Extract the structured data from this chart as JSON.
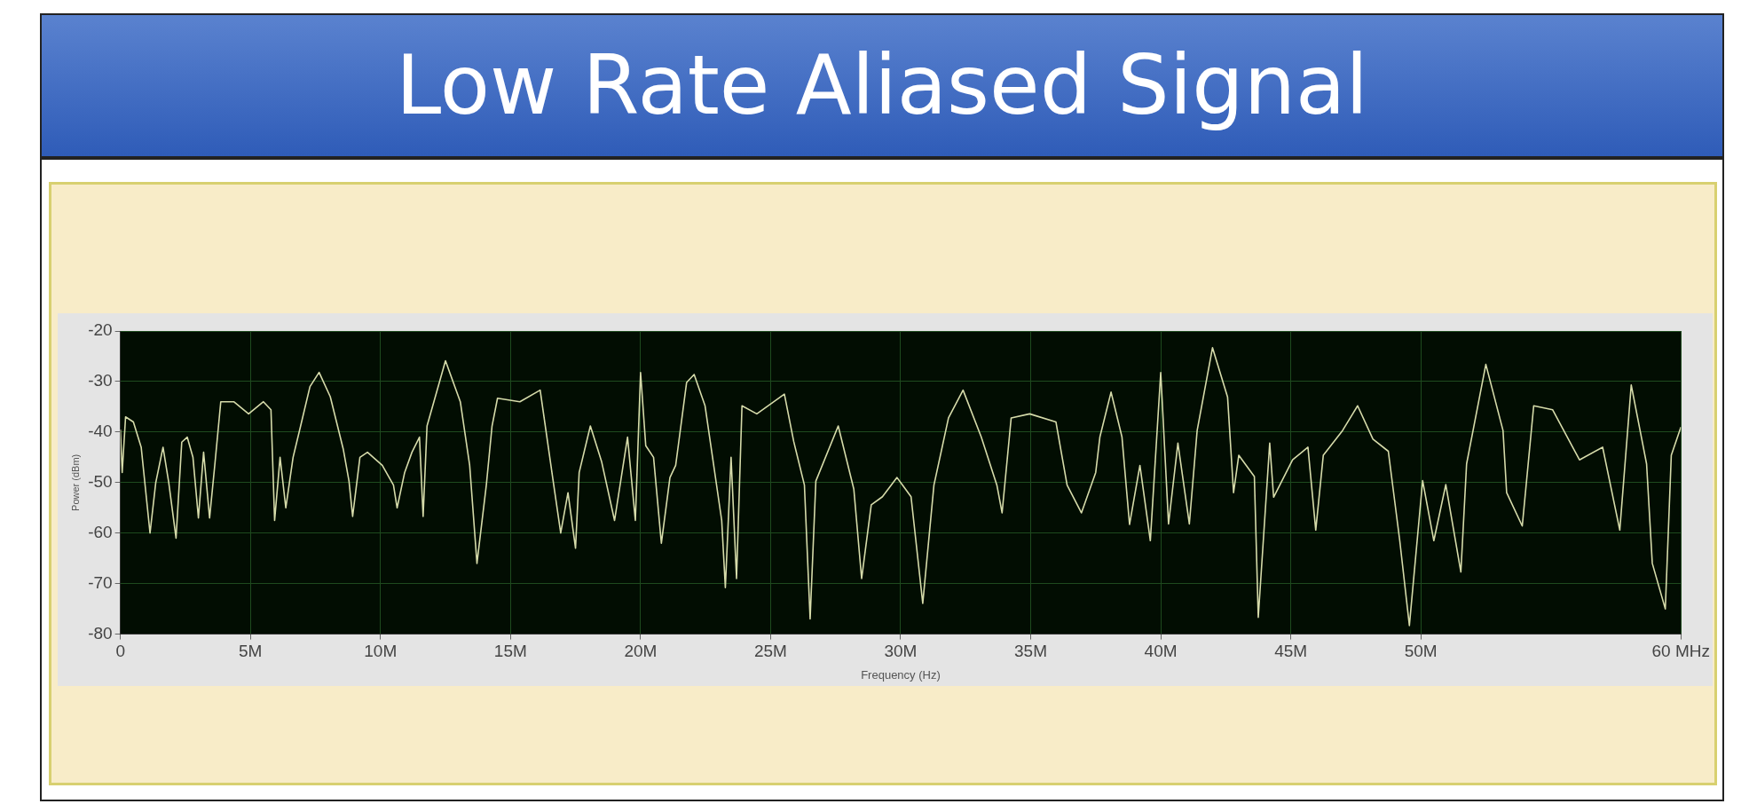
{
  "chart_data": {
    "type": "line",
    "title": "Low Rate Aliased Signal",
    "xlabel": "Frequency (Hz)",
    "ylabel": "Power (dBm)",
    "x": [
      0,
      0.07,
      0.2,
      0.5,
      0.8,
      1.14,
      1.36,
      1.64,
      1.86,
      2.14,
      2.36,
      2.57,
      2.79,
      3.0,
      3.2,
      3.43,
      3.64,
      3.86,
      4.36,
      4.93,
      5.5,
      5.79,
      5.93,
      6.14,
      6.36,
      6.64,
      6.93,
      7.29,
      7.64,
      8.07,
      8.57,
      8.79,
      8.93,
      9.21,
      9.5,
      10.07,
      10.5,
      10.64,
      10.93,
      11.21,
      11.5,
      11.64,
      11.79,
      12.5,
      13.07,
      13.43,
      13.71,
      14.07,
      14.29,
      14.5,
      15.36,
      16.14,
      16.64,
      16.93,
      17.21,
      17.5,
      17.64,
      18.07,
      18.5,
      19.0,
      19.5,
      19.8,
      20.0,
      20.2,
      20.5,
      20.8,
      21.13,
      21.35,
      21.77,
      22.06,
      22.48,
      23.12,
      23.26,
      23.48,
      23.69,
      23.9,
      24.47,
      25.53,
      25.89,
      26.3,
      26.52,
      26.74,
      27.6,
      28.2,
      28.5,
      28.87,
      29.3,
      29.86,
      30.4,
      30.85,
      31.28,
      31.84,
      32.4,
      33.1,
      33.7,
      33.9,
      34.25,
      34.96,
      35.97,
      36.4,
      36.95,
      37.5,
      37.66,
      38.09,
      38.51,
      38.8,
      39.2,
      39.6,
      40.0,
      40.3,
      40.66,
      41.1,
      41.4,
      41.99,
      42.57,
      42.8,
      43.0,
      43.6,
      43.75,
      44.19,
      44.34,
      45.07,
      45.66,
      45.96,
      46.25,
      46.99,
      47.57,
      48.16,
      48.75,
      49.19,
      49.56,
      50.07,
      50.5,
      50.96,
      51.54,
      51.76,
      52.5,
      53.16,
      53.3,
      53.9,
      54.34,
      55.07,
      56.1,
      56.99,
      57.65,
      58.09,
      58.68,
      58.9,
      59.4,
      59.63,
      60
    ],
    "series": [
      {
        "color": "#d6dbaa",
        "values": [
          -39.5,
          -48,
          -37,
          -38,
          -43,
          -60,
          -50,
          -43,
          -50,
          -61,
          -42,
          -41,
          -45,
          -57,
          -44,
          -57,
          -46,
          -34,
          -34,
          -36.4,
          -34,
          -35.6,
          -57.5,
          -45,
          -55,
          -45,
          -38.8,
          -31,
          -28.2,
          -33,
          -43.4,
          -49.7,
          -56.7,
          -45,
          -44,
          -46.6,
          -50.5,
          -55,
          -48,
          -44,
          -41,
          -56.7,
          -38.8,
          -25.9,
          -34,
          -46.6,
          -66,
          -50.5,
          -38.8,
          -33.3,
          -34,
          -31.7,
          -49.7,
          -60,
          -52,
          -63,
          -48,
          -38.8,
          -45.8,
          -57.5,
          -41,
          -57.5,
          -28.2,
          -42.7,
          -45,
          -62,
          -49,
          -46.6,
          -30.2,
          -28.6,
          -34.8,
          -57.5,
          -70.8,
          -45,
          -69,
          -34.8,
          -36.4,
          -32.5,
          -41.9,
          -50.5,
          -77,
          -49.7,
          -38.8,
          -51.3,
          -69,
          -54.4,
          -52.8,
          -49,
          -52.8,
          -73.9,
          -50.5,
          -37.2,
          -31.7,
          -41,
          -50.5,
          -56,
          -37.2,
          -36.4,
          -38,
          -50.5,
          -56,
          -48,
          -41,
          -32.1,
          -41,
          -58.3,
          -46.6,
          -61.5,
          -28.2,
          -58.2,
          -42.2,
          -58.2,
          -39.7,
          -23.3,
          -33.1,
          -52,
          -44.6,
          -48.8,
          -76.7,
          -42.2,
          -52.9,
          -45.5,
          -43,
          -59.4,
          -44.6,
          -39.7,
          -34.8,
          -41.4,
          -43.8,
          -61.5,
          -78.3,
          -49.6,
          -61.5,
          -50.4,
          -67.7,
          -46.3,
          -26.6,
          -39.7,
          -52,
          -58.6,
          -34.8,
          -35.6,
          -45.5,
          -43,
          -59.4,
          -30.7,
          -46.3,
          -66,
          -75,
          -44.6,
          -39
        ]
      }
    ],
    "xlim": [
      0,
      60
    ],
    "xticks": [
      0,
      {
        "value": 5,
        "label": "5M"
      },
      {
        "value": 10,
        "label": "10M"
      },
      {
        "value": 15,
        "label": "15M"
      },
      {
        "value": 20,
        "label": "20M"
      },
      {
        "value": 25,
        "label": "25M"
      },
      {
        "value": 30,
        "label": "30M"
      },
      {
        "value": 35,
        "label": "35M"
      },
      {
        "value": 40,
        "label": "40M"
      },
      {
        "value": 45,
        "label": "45M"
      },
      {
        "value": 50,
        "label": "50M"
      },
      {
        "value": 60,
        "label": "60 MHz"
      }
    ],
    "ylim": [
      -80,
      -20
    ],
    "yticks": [
      -80,
      -70,
      -60,
      -50,
      -40,
      -30,
      -20
    ],
    "grid": true,
    "legend": false,
    "marker": "none",
    "line_style": "solid"
  }
}
